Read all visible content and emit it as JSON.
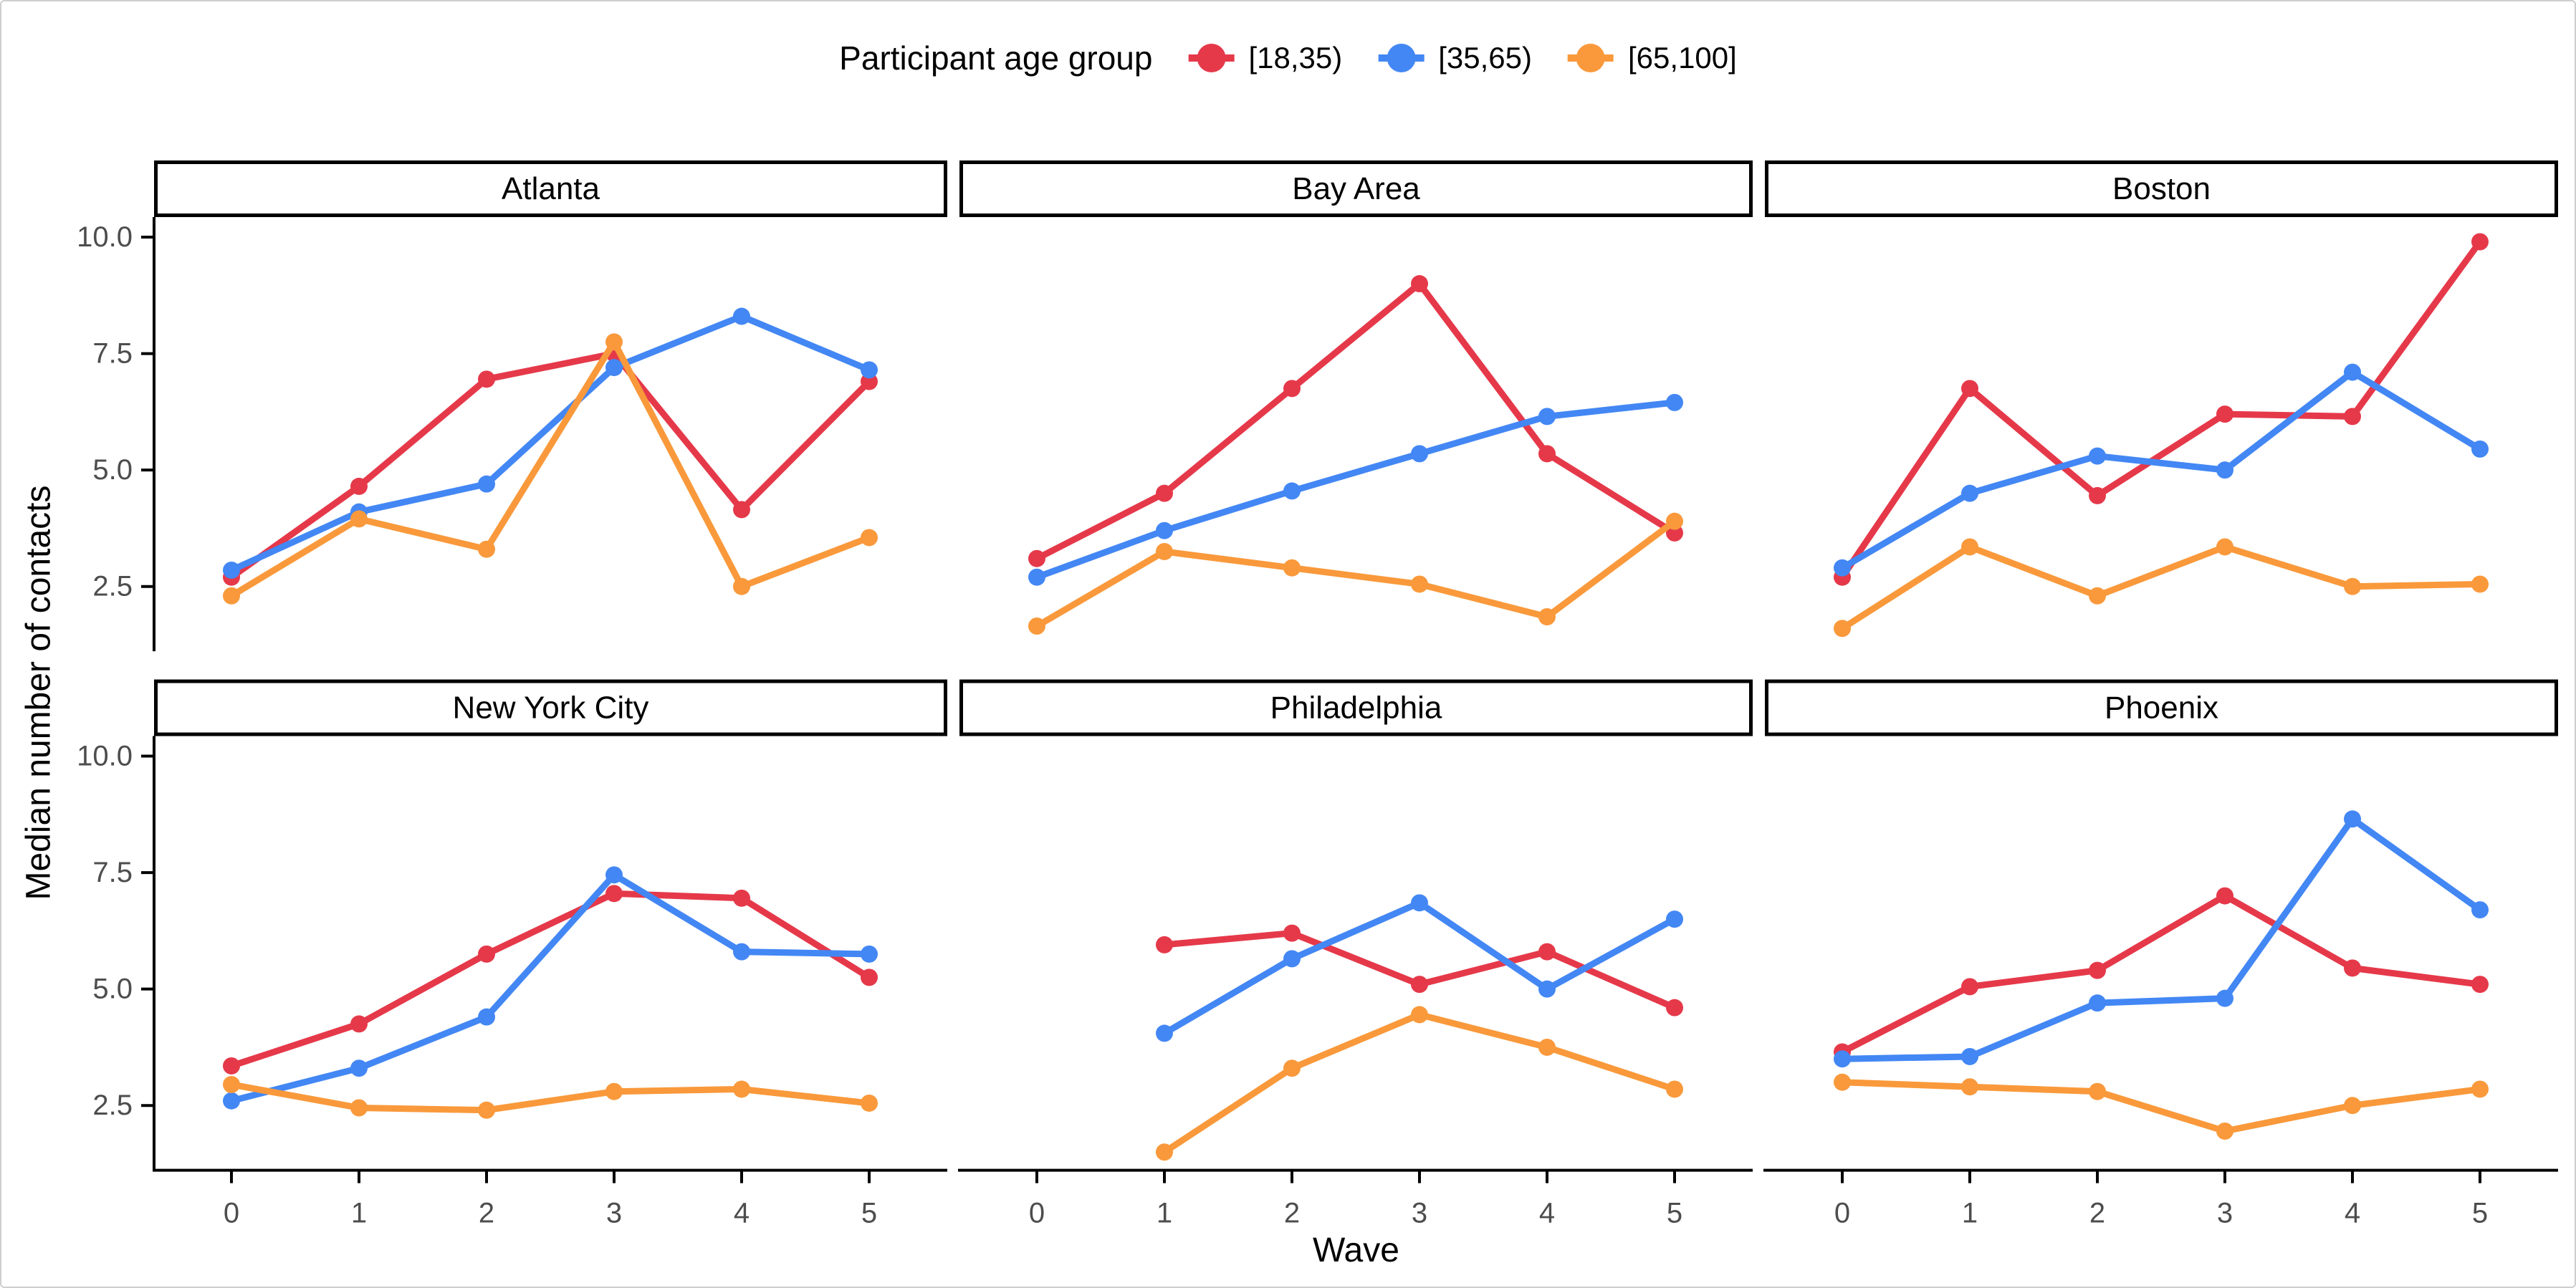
{
  "figure": {
    "background": "#ffffff",
    "border_color": "#cfcfcf",
    "axis_color": "#000000",
    "tick_label_color": "#4d4d4d"
  },
  "legend": {
    "title": "Participant age group",
    "entries": [
      {
        "label": "[18,35)",
        "color": "#E5394A"
      },
      {
        "label": "[35,65)",
        "color": "#4387F4"
      },
      {
        "label": "[65,100]",
        "color": "#F9993B"
      }
    ]
  },
  "chart_data": {
    "type": "line",
    "title": "",
    "xlabel": "Wave",
    "ylabel": "Median number of contacts",
    "x": [
      0,
      1,
      2,
      3,
      4,
      5
    ],
    "x_tick_labels": [
      "0",
      "1",
      "2",
      "3",
      "4",
      "5"
    ],
    "y_tick_values": [
      10.0,
      7.5,
      5.0,
      2.5
    ],
    "y_tick_labels": [
      "10.0",
      "7.5",
      "5.0",
      "2.5"
    ],
    "ylim": [
      1.11,
      10.43
    ],
    "grid": false,
    "legend_position": "top",
    "facet_layout": {
      "rows": 2,
      "cols": 3
    },
    "series_names": [
      "[18,35)",
      "[35,65)",
      "[65,100]"
    ],
    "series_colors": [
      "#E5394A",
      "#4387F4",
      "#F9993B"
    ],
    "facets": [
      {
        "title": "Atlanta",
        "series": [
          {
            "name": "[18,35)",
            "values": [
              2.7,
              4.65,
              6.95,
              7.5,
              4.15,
              6.9
            ]
          },
          {
            "name": "[35,65)",
            "values": [
              2.85,
              4.1,
              4.7,
              7.2,
              8.3,
              7.15
            ]
          },
          {
            "name": "[65,100]",
            "values": [
              2.3,
              3.95,
              3.3,
              7.75,
              2.5,
              3.55
            ]
          }
        ]
      },
      {
        "title": "Bay Area",
        "series": [
          {
            "name": "[18,35)",
            "values": [
              3.1,
              4.5,
              6.75,
              9.0,
              5.35,
              3.65
            ]
          },
          {
            "name": "[35,65)",
            "values": [
              2.7,
              3.7,
              4.55,
              5.35,
              6.15,
              6.45
            ]
          },
          {
            "name": "[65,100]",
            "values": [
              1.65,
              3.25,
              2.9,
              2.55,
              1.85,
              3.9
            ]
          }
        ]
      },
      {
        "title": "Boston",
        "series": [
          {
            "name": "[18,35)",
            "values": [
              2.7,
              6.75,
              4.45,
              6.2,
              6.15,
              9.9
            ]
          },
          {
            "name": "[35,65)",
            "values": [
              2.9,
              4.5,
              5.3,
              5.0,
              7.1,
              5.45
            ]
          },
          {
            "name": "[65,100]",
            "values": [
              1.6,
              3.35,
              2.3,
              3.35,
              2.5,
              2.55
            ]
          }
        ]
      },
      {
        "title": "New York City",
        "series": [
          {
            "name": "[18,35)",
            "values": [
              3.35,
              4.25,
              5.75,
              7.05,
              6.95,
              5.25
            ]
          },
          {
            "name": "[35,65)",
            "values": [
              2.6,
              3.3,
              4.4,
              7.45,
              5.8,
              5.75
            ]
          },
          {
            "name": "[65,100]",
            "values": [
              2.95,
              2.45,
              2.4,
              2.8,
              2.85,
              2.55
            ]
          }
        ]
      },
      {
        "title": "Philadelphia",
        "series": [
          {
            "name": "[18,35)",
            "values": [
              null,
              5.95,
              6.2,
              5.1,
              5.8,
              4.6
            ]
          },
          {
            "name": "[35,65)",
            "values": [
              null,
              4.05,
              5.65,
              6.85,
              5.0,
              6.5
            ]
          },
          {
            "name": "[65,100]",
            "values": [
              null,
              1.5,
              3.3,
              4.45,
              3.75,
              2.85
            ]
          }
        ]
      },
      {
        "title": "Phoenix",
        "series": [
          {
            "name": "[18,35)",
            "values": [
              3.65,
              5.05,
              5.4,
              7.0,
              5.45,
              5.1
            ]
          },
          {
            "name": "[35,65)",
            "values": [
              3.5,
              3.55,
              4.7,
              4.8,
              8.65,
              6.7
            ]
          },
          {
            "name": "[65,100]",
            "values": [
              3.0,
              2.9,
              2.8,
              1.95,
              2.5,
              2.85
            ]
          }
        ]
      }
    ]
  }
}
